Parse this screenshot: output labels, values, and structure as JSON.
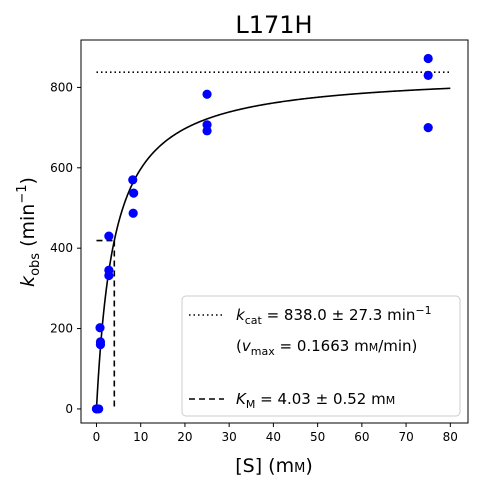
{
  "chart_data": {
    "type": "scatter",
    "title": "L171H",
    "xlabel": {
      "main": "[S] (m",
      "unit_sc": "M",
      "close": ")"
    },
    "ylabel": {
      "k": "k",
      "sub": "obs",
      "unit": " (min",
      "sup": "−1",
      "close": ")"
    },
    "xlim": [
      -3.5,
      84
    ],
    "ylim": [
      -35,
      918
    ],
    "xticks": [
      0,
      10,
      20,
      30,
      40,
      50,
      60,
      70,
      80
    ],
    "yticks": [
      0,
      200,
      400,
      600,
      800
    ],
    "colors": {
      "points": "#0000ff",
      "lines": "#000000"
    },
    "points": [
      [
        0,
        0
      ],
      [
        0,
        0
      ],
      [
        0.5,
        0
      ],
      [
        0.8,
        202
      ],
      [
        0.9,
        167
      ],
      [
        0.9,
        160
      ],
      [
        2.8,
        430
      ],
      [
        2.8,
        345
      ],
      [
        2.8,
        332
      ],
      [
        8.2,
        570
      ],
      [
        8.4,
        537
      ],
      [
        8.3,
        487
      ],
      [
        25,
        783
      ],
      [
        25,
        707
      ],
      [
        25,
        692
      ],
      [
        75,
        872
      ],
      [
        75,
        830
      ],
      [
        75,
        700
      ]
    ],
    "fit": {
      "model": "michaelis-menten",
      "kcat": 838.0,
      "km": 4.03,
      "x_range": [
        0,
        80
      ]
    },
    "kcat_line": {
      "y": 838,
      "x_range": [
        0,
        80
      ]
    },
    "km_marker": {
      "x": 4.03,
      "y": 419,
      "x_start": 0
    },
    "legend": {
      "position": "lower-right",
      "kcat": {
        "k": "k",
        "sub": "cat",
        "value": " = 838.0 ± 27.3 min",
        "sup": "−1"
      },
      "vmax": {
        "open": "(",
        "v": "v",
        "sub": "max",
        "value": " = 0.1663 m",
        "unit_sc": "M",
        "close": "/min)"
      },
      "km": {
        "k": "K",
        "sub": "M",
        "value": " = 4.03 ± 0.52 m",
        "unit_sc": "M"
      }
    }
  }
}
